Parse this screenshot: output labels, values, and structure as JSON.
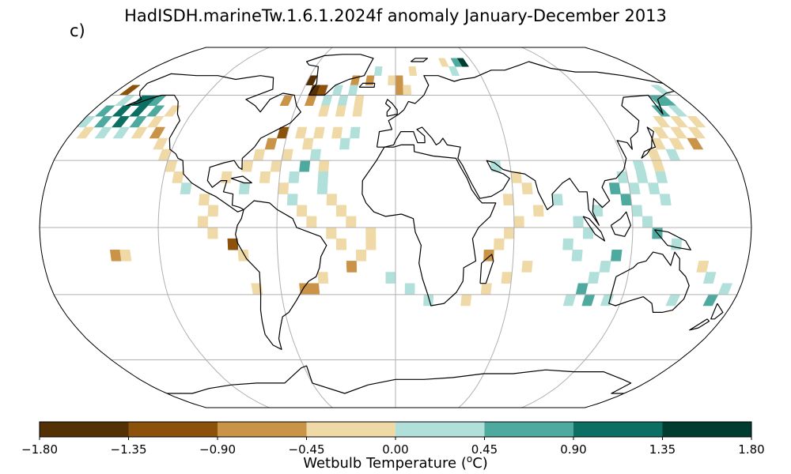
{
  "title": "HadISDH.marineTw.1.6.1.2024f anomaly January-December 2013",
  "panel_label": "c)",
  "colorbar": {
    "label_text": "Wetbulb Temperature (",
    "label_sup": "o",
    "label_end": "C)",
    "ticks": [
      "−1.80",
      "−1.35",
      "−0.90",
      "−0.45",
      "0.00",
      "0.45",
      "0.90",
      "1.35",
      "1.80"
    ],
    "colors": [
      "#543005",
      "#8c510a",
      "#c99448",
      "#efd9a6",
      "#b1e0db",
      "#4eaa9f",
      "#0b6f63",
      "#003c30"
    ]
  },
  "chart_data": {
    "type": "heatmap",
    "projection": "Robinson",
    "region": "global ocean",
    "period": "January-December 2013",
    "variable": "marine wet bulb temperature anomaly",
    "units": "°C",
    "grid_resolution_deg": 5,
    "levels": [
      -1.8,
      -1.35,
      -0.9,
      -0.45,
      0.0,
      0.45,
      0.9,
      1.35,
      1.8
    ],
    "gridlines": {
      "lon_step_deg": 60,
      "lat_step_deg": 30
    },
    "cells": [
      {
        "lat": 77.5,
        "lon": 52.5,
        "class": 7
      },
      {
        "lat": 77.5,
        "lon": 47.5,
        "class": 5
      },
      {
        "lat": 77.5,
        "lon": 37.5,
        "class": 3
      },
      {
        "lat": 72.5,
        "lon": 42.5,
        "class": 4
      },
      {
        "lat": 72.5,
        "lon": -12.5,
        "class": 4
      },
      {
        "lat": 72.5,
        "lon": 12.5,
        "class": 3
      },
      {
        "lat": 67.5,
        "lon": -57.5,
        "class": 0
      },
      {
        "lat": 67.5,
        "lon": -27.5,
        "class": 2
      },
      {
        "lat": 67.5,
        "lon": -17.5,
        "class": 2
      },
      {
        "lat": 67.5,
        "lon": 2.5,
        "class": 2
      },
      {
        "lat": 67.5,
        "lon": -2.5,
        "class": 3
      },
      {
        "lat": 62.5,
        "lon": -52.5,
        "class": 0
      },
      {
        "lat": 62.5,
        "lon": -47.5,
        "class": 1
      },
      {
        "lat": 62.5,
        "lon": -37.5,
        "class": 4
      },
      {
        "lat": 62.5,
        "lon": -27.5,
        "class": 4
      },
      {
        "lat": 62.5,
        "lon": 2.5,
        "class": 2
      },
      {
        "lat": 62.5,
        "lon": 7.5,
        "class": 3
      },
      {
        "lat": 62.5,
        "lon": -172.5,
        "class": 1
      },
      {
        "lat": 62.5,
        "lon": 172.5,
        "class": 4
      },
      {
        "lat": 57.5,
        "lon": -167.5,
        "class": 4
      },
      {
        "lat": 57.5,
        "lon": -157.5,
        "class": 6
      },
      {
        "lat": 57.5,
        "lon": -152.5,
        "class": 6
      },
      {
        "lat": 57.5,
        "lon": -147.5,
        "class": 5
      },
      {
        "lat": 57.5,
        "lon": 162.5,
        "class": 5
      },
      {
        "lat": 57.5,
        "lon": 167.5,
        "class": 5
      },
      {
        "lat": 57.5,
        "lon": -67.5,
        "class": 2
      },
      {
        "lat": 57.5,
        "lon": -52.5,
        "class": 2
      },
      {
        "lat": 57.5,
        "lon": -42.5,
        "class": 4
      },
      {
        "lat": 57.5,
        "lon": -32.5,
        "class": 4
      },
      {
        "lat": 57.5,
        "lon": -22.5,
        "class": 3
      },
      {
        "lat": 52.5,
        "lon": -172.5,
        "class": 5
      },
      {
        "lat": 52.5,
        "lon": -162.5,
        "class": 6
      },
      {
        "lat": 52.5,
        "lon": -152.5,
        "class": 6
      },
      {
        "lat": 52.5,
        "lon": -142.5,
        "class": 5
      },
      {
        "lat": 52.5,
        "lon": -132.5,
        "class": 3
      },
      {
        "lat": 52.5,
        "lon": 157.5,
        "class": 5
      },
      {
        "lat": 52.5,
        "lon": 167.5,
        "class": 4
      },
      {
        "lat": 52.5,
        "lon": -42.5,
        "class": 3
      },
      {
        "lat": 52.5,
        "lon": -32.5,
        "class": 3
      },
      {
        "lat": 52.5,
        "lon": -22.5,
        "class": 3
      },
      {
        "lat": 47.5,
        "lon": -177.5,
        "class": 4
      },
      {
        "lat": 47.5,
        "lon": -167.5,
        "class": 5
      },
      {
        "lat": 47.5,
        "lon": -157.5,
        "class": 6
      },
      {
        "lat": 47.5,
        "lon": -147.5,
        "class": 5
      },
      {
        "lat": 47.5,
        "lon": -137.5,
        "class": 3
      },
      {
        "lat": 47.5,
        "lon": 152.5,
        "class": 3
      },
      {
        "lat": 47.5,
        "lon": 162.5,
        "class": 3
      },
      {
        "lat": 47.5,
        "lon": 172.5,
        "class": 3
      },
      {
        "lat": 42.5,
        "lon": -172.5,
        "class": 3
      },
      {
        "lat": 42.5,
        "lon": -162.5,
        "class": 4
      },
      {
        "lat": 42.5,
        "lon": -152.5,
        "class": 4
      },
      {
        "lat": 42.5,
        "lon": -142.5,
        "class": 3
      },
      {
        "lat": 42.5,
        "lon": -132.5,
        "class": 2
      },
      {
        "lat": 42.5,
        "lon": 147.5,
        "class": 3
      },
      {
        "lat": 42.5,
        "lon": 157.5,
        "class": 3
      },
      {
        "lat": 42.5,
        "lon": 167.5,
        "class": 3
      },
      {
        "lat": 42.5,
        "lon": -62.5,
        "class": 1
      },
      {
        "lat": 42.5,
        "lon": -52.5,
        "class": 3
      },
      {
        "lat": 42.5,
        "lon": -42.5,
        "class": 3
      },
      {
        "lat": 42.5,
        "lon": -32.5,
        "class": 3
      },
      {
        "lat": 42.5,
        "lon": -22.5,
        "class": 4
      },
      {
        "lat": 37.5,
        "lon": -127.5,
        "class": 3
      },
      {
        "lat": 37.5,
        "lon": -67.5,
        "class": 2
      },
      {
        "lat": 37.5,
        "lon": -47.5,
        "class": 3
      },
      {
        "lat": 37.5,
        "lon": -27.5,
        "class": 4
      },
      {
        "lat": 37.5,
        "lon": 142.5,
        "class": 3
      },
      {
        "lat": 37.5,
        "lon": 152.5,
        "class": 3
      },
      {
        "lat": 37.5,
        "lon": 162.5,
        "class": 2
      },
      {
        "lat": 32.5,
        "lon": -122.5,
        "class": 3
      },
      {
        "lat": 32.5,
        "lon": -72.5,
        "class": 3
      },
      {
        "lat": 32.5,
        "lon": -57.5,
        "class": 3
      },
      {
        "lat": 32.5,
        "lon": -42.5,
        "class": 4
      },
      {
        "lat": 32.5,
        "lon": 137.5,
        "class": 3
      },
      {
        "lat": 32.5,
        "lon": 147.5,
        "class": 4
      },
      {
        "lat": 27.5,
        "lon": -117.5,
        "class": 3
      },
      {
        "lat": 27.5,
        "lon": -77.5,
        "class": 3
      },
      {
        "lat": 27.5,
        "lon": -62.5,
        "class": 3
      },
      {
        "lat": 27.5,
        "lon": -47.5,
        "class": 5
      },
      {
        "lat": 27.5,
        "lon": -37.5,
        "class": 3
      },
      {
        "lat": 27.5,
        "lon": 52.5,
        "class": 4
      },
      {
        "lat": 27.5,
        "lon": 127.5,
        "class": 4
      },
      {
        "lat": 27.5,
        "lon": 137.5,
        "class": 3
      },
      {
        "lat": 22.5,
        "lon": -112.5,
        "class": 3
      },
      {
        "lat": 22.5,
        "lon": -87.5,
        "class": 3
      },
      {
        "lat": 22.5,
        "lon": -67.5,
        "class": 3
      },
      {
        "lat": 22.5,
        "lon": -52.5,
        "class": 4
      },
      {
        "lat": 22.5,
        "lon": -37.5,
        "class": 4
      },
      {
        "lat": 22.5,
        "lon": 62.5,
        "class": 3
      },
      {
        "lat": 22.5,
        "lon": 117.5,
        "class": 4
      },
      {
        "lat": 22.5,
        "lon": 127.5,
        "class": 4
      },
      {
        "lat": 22.5,
        "lon": 137.5,
        "class": 4
      },
      {
        "lat": 17.5,
        "lon": -107.5,
        "class": 4
      },
      {
        "lat": 17.5,
        "lon": -77.5,
        "class": 4
      },
      {
        "lat": 17.5,
        "lon": -57.5,
        "class": 3
      },
      {
        "lat": 17.5,
        "lon": -37.5,
        "class": 4
      },
      {
        "lat": 17.5,
        "lon": 67.5,
        "class": 3
      },
      {
        "lat": 17.5,
        "lon": 112.5,
        "class": 5
      },
      {
        "lat": 17.5,
        "lon": 122.5,
        "class": 4
      },
      {
        "lat": 17.5,
        "lon": 132.5,
        "class": 4
      },
      {
        "lat": 12.5,
        "lon": -97.5,
        "class": 3
      },
      {
        "lat": 12.5,
        "lon": -52.5,
        "class": 4
      },
      {
        "lat": 12.5,
        "lon": -32.5,
        "class": 3
      },
      {
        "lat": 12.5,
        "lon": 57.5,
        "class": 3
      },
      {
        "lat": 12.5,
        "lon": 82.5,
        "class": 4
      },
      {
        "lat": 12.5,
        "lon": 117.5,
        "class": 5
      },
      {
        "lat": 12.5,
        "lon": 137.5,
        "class": 4
      },
      {
        "lat": 7.5,
        "lon": -92.5,
        "class": 3
      },
      {
        "lat": 7.5,
        "lon": -47.5,
        "class": 3
      },
      {
        "lat": 7.5,
        "lon": -27.5,
        "class": 3
      },
      {
        "lat": 7.5,
        "lon": 72.5,
        "class": 3
      },
      {
        "lat": 7.5,
        "lon": 102.5,
        "class": 4
      },
      {
        "lat": 7.5,
        "lon": 122.5,
        "class": 4
      },
      {
        "lat": 2.5,
        "lon": -97.5,
        "class": 3
      },
      {
        "lat": 2.5,
        "lon": -42.5,
        "class": 3
      },
      {
        "lat": 2.5,
        "lon": -22.5,
        "class": 3
      },
      {
        "lat": 2.5,
        "lon": 62.5,
        "class": 3
      },
      {
        "lat": 2.5,
        "lon": 92.5,
        "class": 4
      },
      {
        "lat": 2.5,
        "lon": 127.5,
        "class": 4
      },
      {
        "lat": -2.5,
        "lon": -92.5,
        "class": 3
      },
      {
        "lat": -2.5,
        "lon": -32.5,
        "class": 3
      },
      {
        "lat": -2.5,
        "lon": -12.5,
        "class": 3
      },
      {
        "lat": -2.5,
        "lon": 57.5,
        "class": 3
      },
      {
        "lat": -2.5,
        "lon": 97.5,
        "class": 4
      },
      {
        "lat": -2.5,
        "lon": 132.5,
        "class": 5
      },
      {
        "lat": -7.5,
        "lon": -82.5,
        "class": 1
      },
      {
        "lat": -7.5,
        "lon": -27.5,
        "class": 3
      },
      {
        "lat": -7.5,
        "lon": -12.5,
        "class": 3
      },
      {
        "lat": -7.5,
        "lon": 52.5,
        "class": 3
      },
      {
        "lat": -7.5,
        "lon": 87.5,
        "class": 4
      },
      {
        "lat": -7.5,
        "lon": 142.5,
        "class": 4
      },
      {
        "lat": -12.5,
        "lon": -142.5,
        "class": 2
      },
      {
        "lat": -12.5,
        "lon": -137.5,
        "class": 3
      },
      {
        "lat": -12.5,
        "lon": -77.5,
        "class": 3
      },
      {
        "lat": -12.5,
        "lon": -17.5,
        "class": 3
      },
      {
        "lat": -12.5,
        "lon": 47.5,
        "class": 2
      },
      {
        "lat": -12.5,
        "lon": 92.5,
        "class": 4
      },
      {
        "lat": -12.5,
        "lon": 112.5,
        "class": 5
      },
      {
        "lat": -17.5,
        "lon": -22.5,
        "class": 2
      },
      {
        "lat": -17.5,
        "lon": 67.5,
        "class": 3
      },
      {
        "lat": -17.5,
        "lon": 107.5,
        "class": 4
      },
      {
        "lat": -17.5,
        "lon": 157.5,
        "class": 3
      },
      {
        "lat": -22.5,
        "lon": -37.5,
        "class": 3
      },
      {
        "lat": -22.5,
        "lon": -2.5,
        "class": 4
      },
      {
        "lat": -22.5,
        "lon": 57.5,
        "class": 3
      },
      {
        "lat": -22.5,
        "lon": 102.5,
        "class": 4
      },
      {
        "lat": -22.5,
        "lon": 162.5,
        "class": 4
      },
      {
        "lat": -27.5,
        "lon": -72.5,
        "class": 3
      },
      {
        "lat": -27.5,
        "lon": -47.5,
        "class": 2
      },
      {
        "lat": -27.5,
        "lon": -42.5,
        "class": 2
      },
      {
        "lat": -27.5,
        "lon": 7.5,
        "class": 4
      },
      {
        "lat": -27.5,
        "lon": 47.5,
        "class": 3
      },
      {
        "lat": -27.5,
        "lon": 97.5,
        "class": 5
      },
      {
        "lat": -27.5,
        "lon": 172.5,
        "class": 4
      },
      {
        "lat": -32.5,
        "lon": 17.5,
        "class": 4
      },
      {
        "lat": -32.5,
        "lon": 37.5,
        "class": 3
      },
      {
        "lat": -32.5,
        "lon": 92.5,
        "class": 4
      },
      {
        "lat": -32.5,
        "lon": 102.5,
        "class": 5
      },
      {
        "lat": -32.5,
        "lon": 112.5,
        "class": 4
      },
      {
        "lat": -32.5,
        "lon": 147.5,
        "class": 4
      },
      {
        "lat": -32.5,
        "lon": 167.5,
        "class": 5
      }
    ]
  }
}
